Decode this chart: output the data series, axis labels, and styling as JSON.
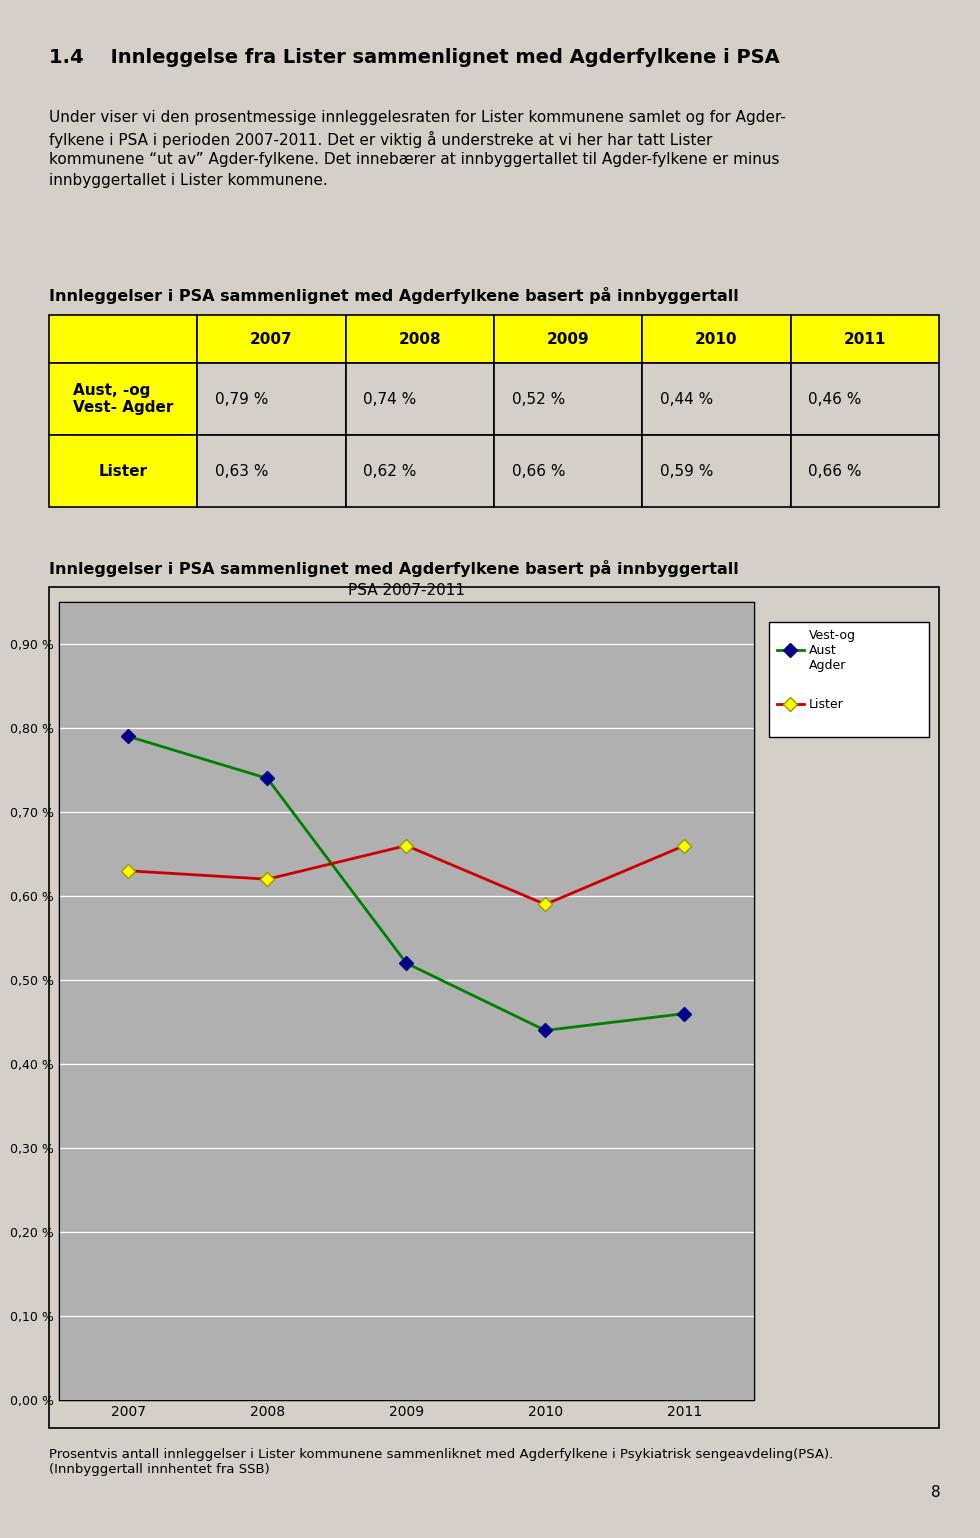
{
  "page_bg": "#d4d0c8",
  "title_heading": "1.4    Innleggelse fra Lister sammenlignet med Agderfylkene i PSA",
  "body_text_lines": [
    "Under viser vi den prosentmessige innleggelesraten for Lister kommunene samlet og for Agder-",
    "fylkene i PSA i perioden 2007-2011. Det er viktig å understreke at vi her har tatt Lister",
    "kommunene “ut av” Agder-fylkene. Det innebærer at innbyggertallet til Agder-fylkene er minus",
    "innbyggertallet i Lister kommunene."
  ],
  "table_title": "Innleggelser i PSA sammenlignet med Agderfylkene basert på innbyggertall",
  "table_header_bg": "#ffff00",
  "table_data_bg": "#d4d0c8",
  "table_row1_label_bg": "#ffff00",
  "table_row2_label_bg": "#ffff00",
  "table_years": [
    "2007",
    "2008",
    "2009",
    "2010",
    "2011"
  ],
  "table_row1_label": "Aust, -og\nVest- Agder",
  "table_row2_label": "Lister",
  "table_row1_values": [
    "0,79 %",
    "0,74 %",
    "0,52 %",
    "0,44 %",
    "0,46 %"
  ],
  "table_row2_values": [
    "0,63 %",
    "0,62 %",
    "0,66 %",
    "0,59 %",
    "0,66 %"
  ],
  "chart_outer_title": "Innleggelser i PSA sammenlignet med Agderfylkene basert på innbyggertall",
  "chart_inner_title": "PSA 2007-2011",
  "chart_bg": "#d4d0c8",
  "chart_plot_bg": "#b0b0b0",
  "chart_years": [
    2007,
    2008,
    2009,
    2010,
    2011
  ],
  "series_agder_values": [
    0.0079,
    0.0074,
    0.0052,
    0.0044,
    0.0046
  ],
  "series_lister_values": [
    0.0063,
    0.0062,
    0.0066,
    0.0059,
    0.0066
  ],
  "series_agder_color": "#008000",
  "series_agder_marker_color": "#00008b",
  "series_lister_color": "#cc0000",
  "series_lister_marker_color": "#ffff00",
  "legend_agder_label": "Vest-og\nAust\nAgder",
  "legend_lister_label": "Lister",
  "ytick_labels": [
    "0,00 %",
    "0,10 %",
    "0,20 %",
    "0,30 %",
    "0,40 %",
    "0,50 %",
    "0,60 %",
    "0,70 %",
    "0,80 %",
    "0,90 %"
  ],
  "ytick_values": [
    0.0,
    0.001,
    0.002,
    0.003,
    0.004,
    0.005,
    0.006,
    0.007,
    0.008,
    0.009
  ],
  "footer_text": "Prosentvis antall innleggelser i Lister kommunene sammenliknet med Agderfylkene i Psykiatrisk sengeavdeling(PSA).\n(Innbyggertall innhentet fra SSB)",
  "page_number": "8"
}
